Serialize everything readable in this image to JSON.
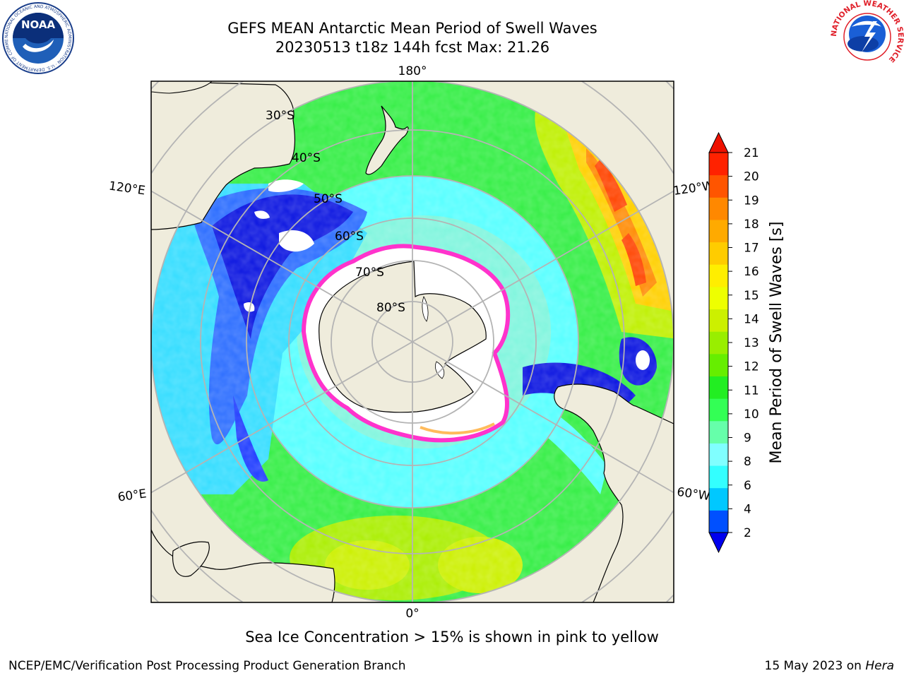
{
  "header": {
    "title_line1": "GEFS MEAN Antarctic Mean Period of Swell Waves",
    "title_line2": "20230513 t18z 144h fcst   Max: 21.26"
  },
  "logos": {
    "left": "NOAA",
    "left_ring_text": "NATIONAL OCEANIC AND ATMOSPHERIC ADMINISTRATION · U.S. DEPARTMENT OF COMMERCE",
    "right_ring_text": "NATIONAL WEATHER SERVICE"
  },
  "map": {
    "projection": "south-polar-stereographic",
    "longitude_labels": {
      "top": "180°",
      "bottom": "0°",
      "left_upper": "120°E",
      "left_lower": "60°E",
      "right_upper": "120°W",
      "right_lower": "60°W"
    },
    "latitude_labels": [
      "30°S",
      "40°S",
      "50°S",
      "60°S",
      "70°S",
      "80°S"
    ],
    "colors": {
      "land": "#efecdc",
      "ice": "#ffffff",
      "ice_edge": "#ff33cc",
      "grid": "#b4b4b4"
    }
  },
  "colorbar": {
    "label": "Mean Period of Swell Waves [s]",
    "ticks": [
      "2",
      "4",
      "6",
      "8",
      "9",
      "10",
      "11",
      "12",
      "13",
      "14",
      "15",
      "16",
      "17",
      "18",
      "19",
      "20",
      "21"
    ],
    "colors": [
      "#0050ff",
      "#00c8ff",
      "#33ffff",
      "#80ffff",
      "#66ffaa",
      "#33ff55",
      "#22ee22",
      "#66ee00",
      "#99ee00",
      "#ccf000",
      "#eeff00",
      "#ffee00",
      "#ffcc00",
      "#ffaa00",
      "#ff8800",
      "#ff5500",
      "#ff2200"
    ],
    "under_color": "#0000ee",
    "over_color": "#ee1100"
  },
  "notes": {
    "sea_ice": "Sea Ice Concentration > 15% is shown in pink to yellow"
  },
  "footer": {
    "left": "NCEP/EMC/Verification Post Processing Product Generation Branch",
    "right_prefix": "15 May 2023 on ",
    "right_host": "Hera"
  }
}
